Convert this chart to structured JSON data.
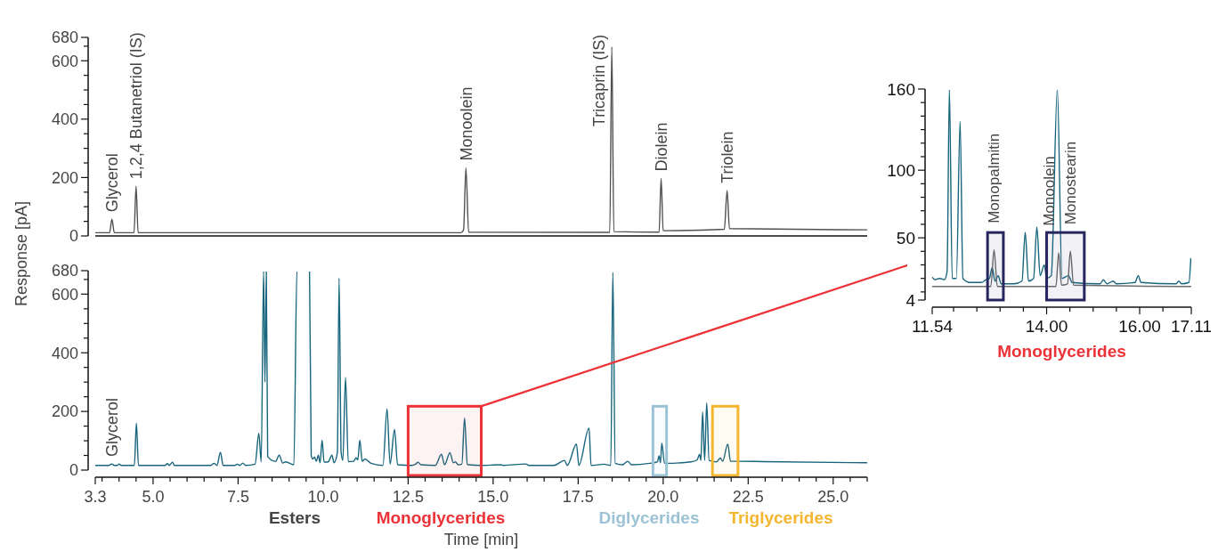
{
  "chart_data": [
    {
      "type": "line",
      "ylabel": "Response [pA]",
      "xlim": [
        3.3,
        26
      ],
      "ylim": [
        0,
        680
      ],
      "tick_labels": "y",
      "yticks": [
        0,
        {
          "value": 50,
          "label": null
        },
        {
          "value": 100,
          "label": null
        },
        {
          "value": 150,
          "label": null
        },
        200,
        {
          "value": 250,
          "label": null
        },
        {
          "value": 300,
          "label": null
        },
        {
          "value": 350,
          "label": null
        },
        400,
        {
          "value": 450,
          "label": null
        },
        {
          "value": 500,
          "label": null
        },
        {
          "value": 550,
          "label": null
        },
        600,
        {
          "value": 650,
          "label": null
        },
        680
      ],
      "series": [
        {
          "color": "#505050",
          "x": [
            3.3,
            3.72,
            3.79,
            3.86,
            4.44,
            4.5,
            4.56,
            14.05,
            14.13,
            14.2,
            14.28,
            18.43,
            18.49,
            18.55,
            19.88,
            19.94,
            20.0,
            21.8,
            21.88,
            21.95,
            26
          ],
          "values": [
            11,
            11,
            57,
            11,
            11,
            170,
            11,
            11,
            20,
            233,
            13,
            12,
            648,
            15,
            13,
            197,
            18,
            23,
            156,
            25,
            21
          ]
        }
      ],
      "annotations": [
        {
          "text": "Glycerol",
          "x": 3.79,
          "y": 57
        },
        {
          "text": "1,2,4 Butanetriol (IS)",
          "x": 4.5,
          "y": 170
        },
        {
          "text": "Monoolein",
          "x": 14.2,
          "y": 233
        },
        {
          "text": "Tricaprin (IS)",
          "x": 18.49,
          "y": 648
        },
        {
          "text": "Diolein",
          "x": 19.94,
          "y": 197
        },
        {
          "text": "Triolein",
          "x": 21.88,
          "y": 156
        }
      ]
    },
    {
      "type": "line",
      "xlabel": "Time [min]",
      "xlim": [
        3.3,
        26
      ],
      "ylim": [
        0,
        680
      ],
      "xticks": [
        3.3,
        {
          "value": 3.5,
          "label": null
        },
        {
          "value": 4,
          "label": null
        },
        {
          "value": 4.5,
          "label": null
        },
        {
          "value": 5,
          "label": "5.0"
        },
        {
          "value": 5.5,
          "label": null
        },
        {
          "value": 6,
          "label": null
        },
        {
          "value": 6.5,
          "label": null
        },
        {
          "value": 7,
          "label": null
        },
        7.5,
        {
          "value": 8,
          "label": null
        },
        {
          "value": 8.5,
          "label": null
        },
        {
          "value": 9,
          "label": null
        },
        {
          "value": 9.5,
          "label": null
        },
        {
          "value": 10,
          "label": "10.0"
        },
        {
          "value": 10.5,
          "label": null
        },
        {
          "value": 11,
          "label": null
        },
        {
          "value": 11.5,
          "label": null
        },
        {
          "value": 12,
          "label": null
        },
        12.5,
        {
          "value": 13,
          "label": null
        },
        {
          "value": 13.5,
          "label": null
        },
        {
          "value": 14,
          "label": null
        },
        {
          "value": 14.5,
          "label": null
        },
        {
          "value": 15,
          "label": "15.0"
        },
        {
          "value": 15.5,
          "label": null
        },
        {
          "value": 16,
          "label": null
        },
        {
          "value": 16.5,
          "label": null
        },
        {
          "value": 17,
          "label": null
        },
        17.5,
        {
          "value": 18,
          "label": null
        },
        {
          "value": 18.5,
          "label": null
        },
        {
          "value": 19,
          "label": null
        },
        {
          "value": 19.5,
          "label": null
        },
        {
          "value": 20,
          "label": "20.0"
        },
        {
          "value": 20.5,
          "label": null
        },
        {
          "value": 21,
          "label": null
        },
        {
          "value": 21.5,
          "label": null
        },
        {
          "value": 22,
          "label": null
        },
        22.5,
        {
          "value": 23,
          "label": null
        },
        {
          "value": 23.5,
          "label": null
        },
        {
          "value": 24,
          "label": null
        },
        {
          "value": 24.5,
          "label": null
        },
        {
          "value": 25,
          "label": "25.0"
        },
        {
          "value": 25.5,
          "label": null
        },
        {
          "value": 26,
          "label": null
        }
      ],
      "yticks": [
        0,
        {
          "value": 50,
          "label": null
        },
        {
          "value": 100,
          "label": null
        },
        {
          "value": 150,
          "label": null
        },
        200,
        {
          "value": 250,
          "label": null
        },
        {
          "value": 300,
          "label": null
        },
        {
          "value": 350,
          "label": null
        },
        400,
        {
          "value": 450,
          "label": null
        },
        {
          "value": 500,
          "label": null
        },
        {
          "value": 550,
          "label": null
        },
        600,
        {
          "value": 650,
          "label": null
        },
        680
      ],
      "series": [
        {
          "color": "#17657d",
          "x": [
            3.3,
            3.7,
            3.78,
            3.86,
            3.95,
            4.0,
            4.06,
            4.45,
            4.51,
            4.57,
            5.35,
            5.42,
            5.48,
            5.57,
            5.63,
            6.7,
            6.79,
            6.88,
            6.98,
            7.06,
            7.4,
            7.47,
            7.55,
            7.64,
            7.72,
            8.0,
            8.11,
            8.18,
            8.25,
            8.29,
            8.33,
            8.37,
            8.6,
            8.71,
            8.81,
            8.9,
            9.14,
            9.23,
            9.6,
            9.65,
            9.7,
            9.75,
            9.8,
            9.86,
            9.91,
            9.97,
            10.03,
            10.15,
            10.26,
            10.32,
            10.42,
            10.47,
            10.53,
            10.58,
            10.66,
            10.74,
            10.9,
            10.97,
            11.02,
            11.08,
            11.15,
            11.23,
            11.41,
            11.76,
            11.88,
            11.97,
            12.1,
            12.19,
            12.6,
            12.72,
            12.79,
            12.88,
            13.3,
            13.48,
            13.57,
            13.73,
            13.83,
            13.89,
            13.97,
            14.08,
            14.16,
            14.24,
            14.28,
            14.63,
            15.23,
            15.3,
            15.96,
            16.05,
            16.79,
            17.1,
            17.18,
            17.45,
            17.52,
            17.82,
            17.88,
            18.26,
            18.46,
            18.52,
            18.59,
            18.8,
            18.96,
            19.07,
            19.6,
            19.83,
            19.88,
            19.92,
            19.96,
            20.04,
            20.82,
            21.0,
            21.07,
            21.11,
            21.16,
            21.22,
            21.28,
            21.35,
            21.57,
            21.68,
            21.75,
            21.9,
            21.98,
            22.2,
            22.93,
            26
          ],
          "values": [
            16,
            16,
            21,
            16,
            16,
            21,
            16,
            16,
            160,
            16,
            16,
            22,
            16,
            27,
            16,
            16,
            23,
            16,
            61,
            16,
            16,
            20,
            16,
            24,
            16,
            20,
            125,
            28,
            680,
            300,
            680,
            46,
            30,
            51,
            24,
            28,
            18,
            680,
            680,
            49,
            38,
            44,
            30,
            51,
            25,
            102,
            27,
            28,
            51,
            25,
            60,
            654,
            60,
            33,
            317,
            29,
            30,
            42,
            35,
            102,
            30,
            38,
            23,
            16,
            209,
            20,
            138,
            18,
            16,
            20,
            27,
            18,
            16,
            54,
            18,
            59,
            25,
            28,
            18,
            20,
            178,
            20,
            18,
            16,
            18,
            16,
            21,
            16,
            16,
            33,
            16,
            89,
            16,
            143,
            16,
            20,
            16,
            674,
            23,
            18,
            30,
            18,
            23,
            28,
            49,
            25,
            92,
            23,
            28,
            35,
            54,
            33,
            198,
            33,
            229,
            33,
            28,
            41,
            30,
            89,
            30,
            30,
            29,
            25
          ]
        }
      ],
      "bands": [
        {
          "axis": "x",
          "from": 12.5,
          "to": 14.65,
          "label": "Monoglycerides",
          "color": "#ec3237"
        },
        {
          "axis": "x",
          "from": 19.7,
          "to": 20.1,
          "label": "Diglycerides",
          "color": "#9cc3d5"
        },
        {
          "axis": "x",
          "from": 21.45,
          "to": 22.2,
          "label": "Triglycerides",
          "color": "#f5b52e"
        }
      ],
      "annotations": [
        {
          "text": "Glycerol",
          "x": 3.78,
          "y": 21
        },
        "Esters"
      ]
    },
    {
      "type": "line",
      "xlabel": "Monoglycerides",
      "xlim": [
        11.54,
        17.11
      ],
      "ylim": [
        4,
        160
      ],
      "xticks": [
        11.54,
        {
          "value": 12,
          "label": null
        },
        {
          "value": 12.5,
          "label": null
        },
        {
          "value": 13,
          "label": null
        },
        {
          "value": 13.5,
          "label": null
        },
        {
          "value": 14,
          "label": "14.00"
        },
        {
          "value": 14.5,
          "label": null
        },
        {
          "value": 15,
          "label": null
        },
        {
          "value": 15.5,
          "label": null
        },
        {
          "value": 16,
          "label": "16.00"
        },
        {
          "value": 16.5,
          "label": null
        },
        17.11
      ],
      "yticks": [
        4,
        {
          "value": 10,
          "label": null
        },
        {
          "value": 20,
          "label": null
        },
        {
          "value": 30,
          "label": null
        },
        {
          "value": 40,
          "label": null
        },
        50,
        {
          "value": 60,
          "label": null
        },
        {
          "value": 70,
          "label": null
        },
        {
          "value": 80,
          "label": null
        },
        {
          "value": 90,
          "label": null
        },
        100,
        {
          "value": 110,
          "label": null
        },
        {
          "value": 120,
          "label": null
        },
        {
          "value": 130,
          "label": null
        },
        {
          "value": 140,
          "label": null
        },
        {
          "value": 150,
          "label": null
        },
        160
      ],
      "series": [
        {
          "color": "#17657d",
          "x": [
            11.54,
            11.6,
            11.7,
            11.8,
            11.86,
            11.91,
            11.97,
            12.06,
            12.14,
            12.2,
            12.35,
            12.6,
            12.7,
            12.77,
            12.83,
            12.89,
            12.96,
            13.02,
            13.3,
            13.47,
            13.54,
            13.61,
            13.72,
            13.79,
            13.86,
            13.95,
            14.0,
            14.1,
            14.23,
            14.33,
            14.47,
            14.55,
            15.15,
            15.22,
            15.3,
            15.43,
            15.5,
            15.9,
            15.97,
            16.03,
            16.78,
            16.84,
            16.9,
            17.06,
            17.1
          ],
          "values": [
            21,
            19,
            20,
            19,
            25,
            160,
            20,
            20,
            136,
            20,
            17,
            17,
            19,
            20,
            28,
            18,
            22,
            16,
            16,
            18,
            54,
            18,
            20,
            58,
            22,
            30,
            20,
            22,
            160,
            20,
            22,
            17,
            16,
            19,
            16,
            18,
            16,
            17,
            22,
            17,
            16,
            18,
            16,
            17,
            35
          ]
        },
        {
          "color": "#6b6b6b",
          "x": [
            11.54,
            12.8,
            12.87,
            12.94,
            14.2,
            14.26,
            14.32,
            14.45,
            14.51,
            14.58,
            17.11
          ],
          "values": [
            14,
            14,
            41,
            14,
            14,
            39,
            15,
            16,
            40,
            15,
            14
          ]
        }
      ],
      "bands": [
        {
          "axis": "x",
          "from": 12.73,
          "to": 13.07,
          "color": "#27265e"
        },
        {
          "axis": "x",
          "from": 14.0,
          "to": 14.81,
          "color": "#27265e"
        }
      ],
      "annotations": [
        {
          "text": "Monopalmitin",
          "x": 12.87,
          "y": 41
        },
        {
          "text": "Monoolein",
          "x": 14.26,
          "y": 39
        },
        {
          "text": "Monostearin",
          "x": 14.51,
          "y": 40
        }
      ]
    }
  ]
}
